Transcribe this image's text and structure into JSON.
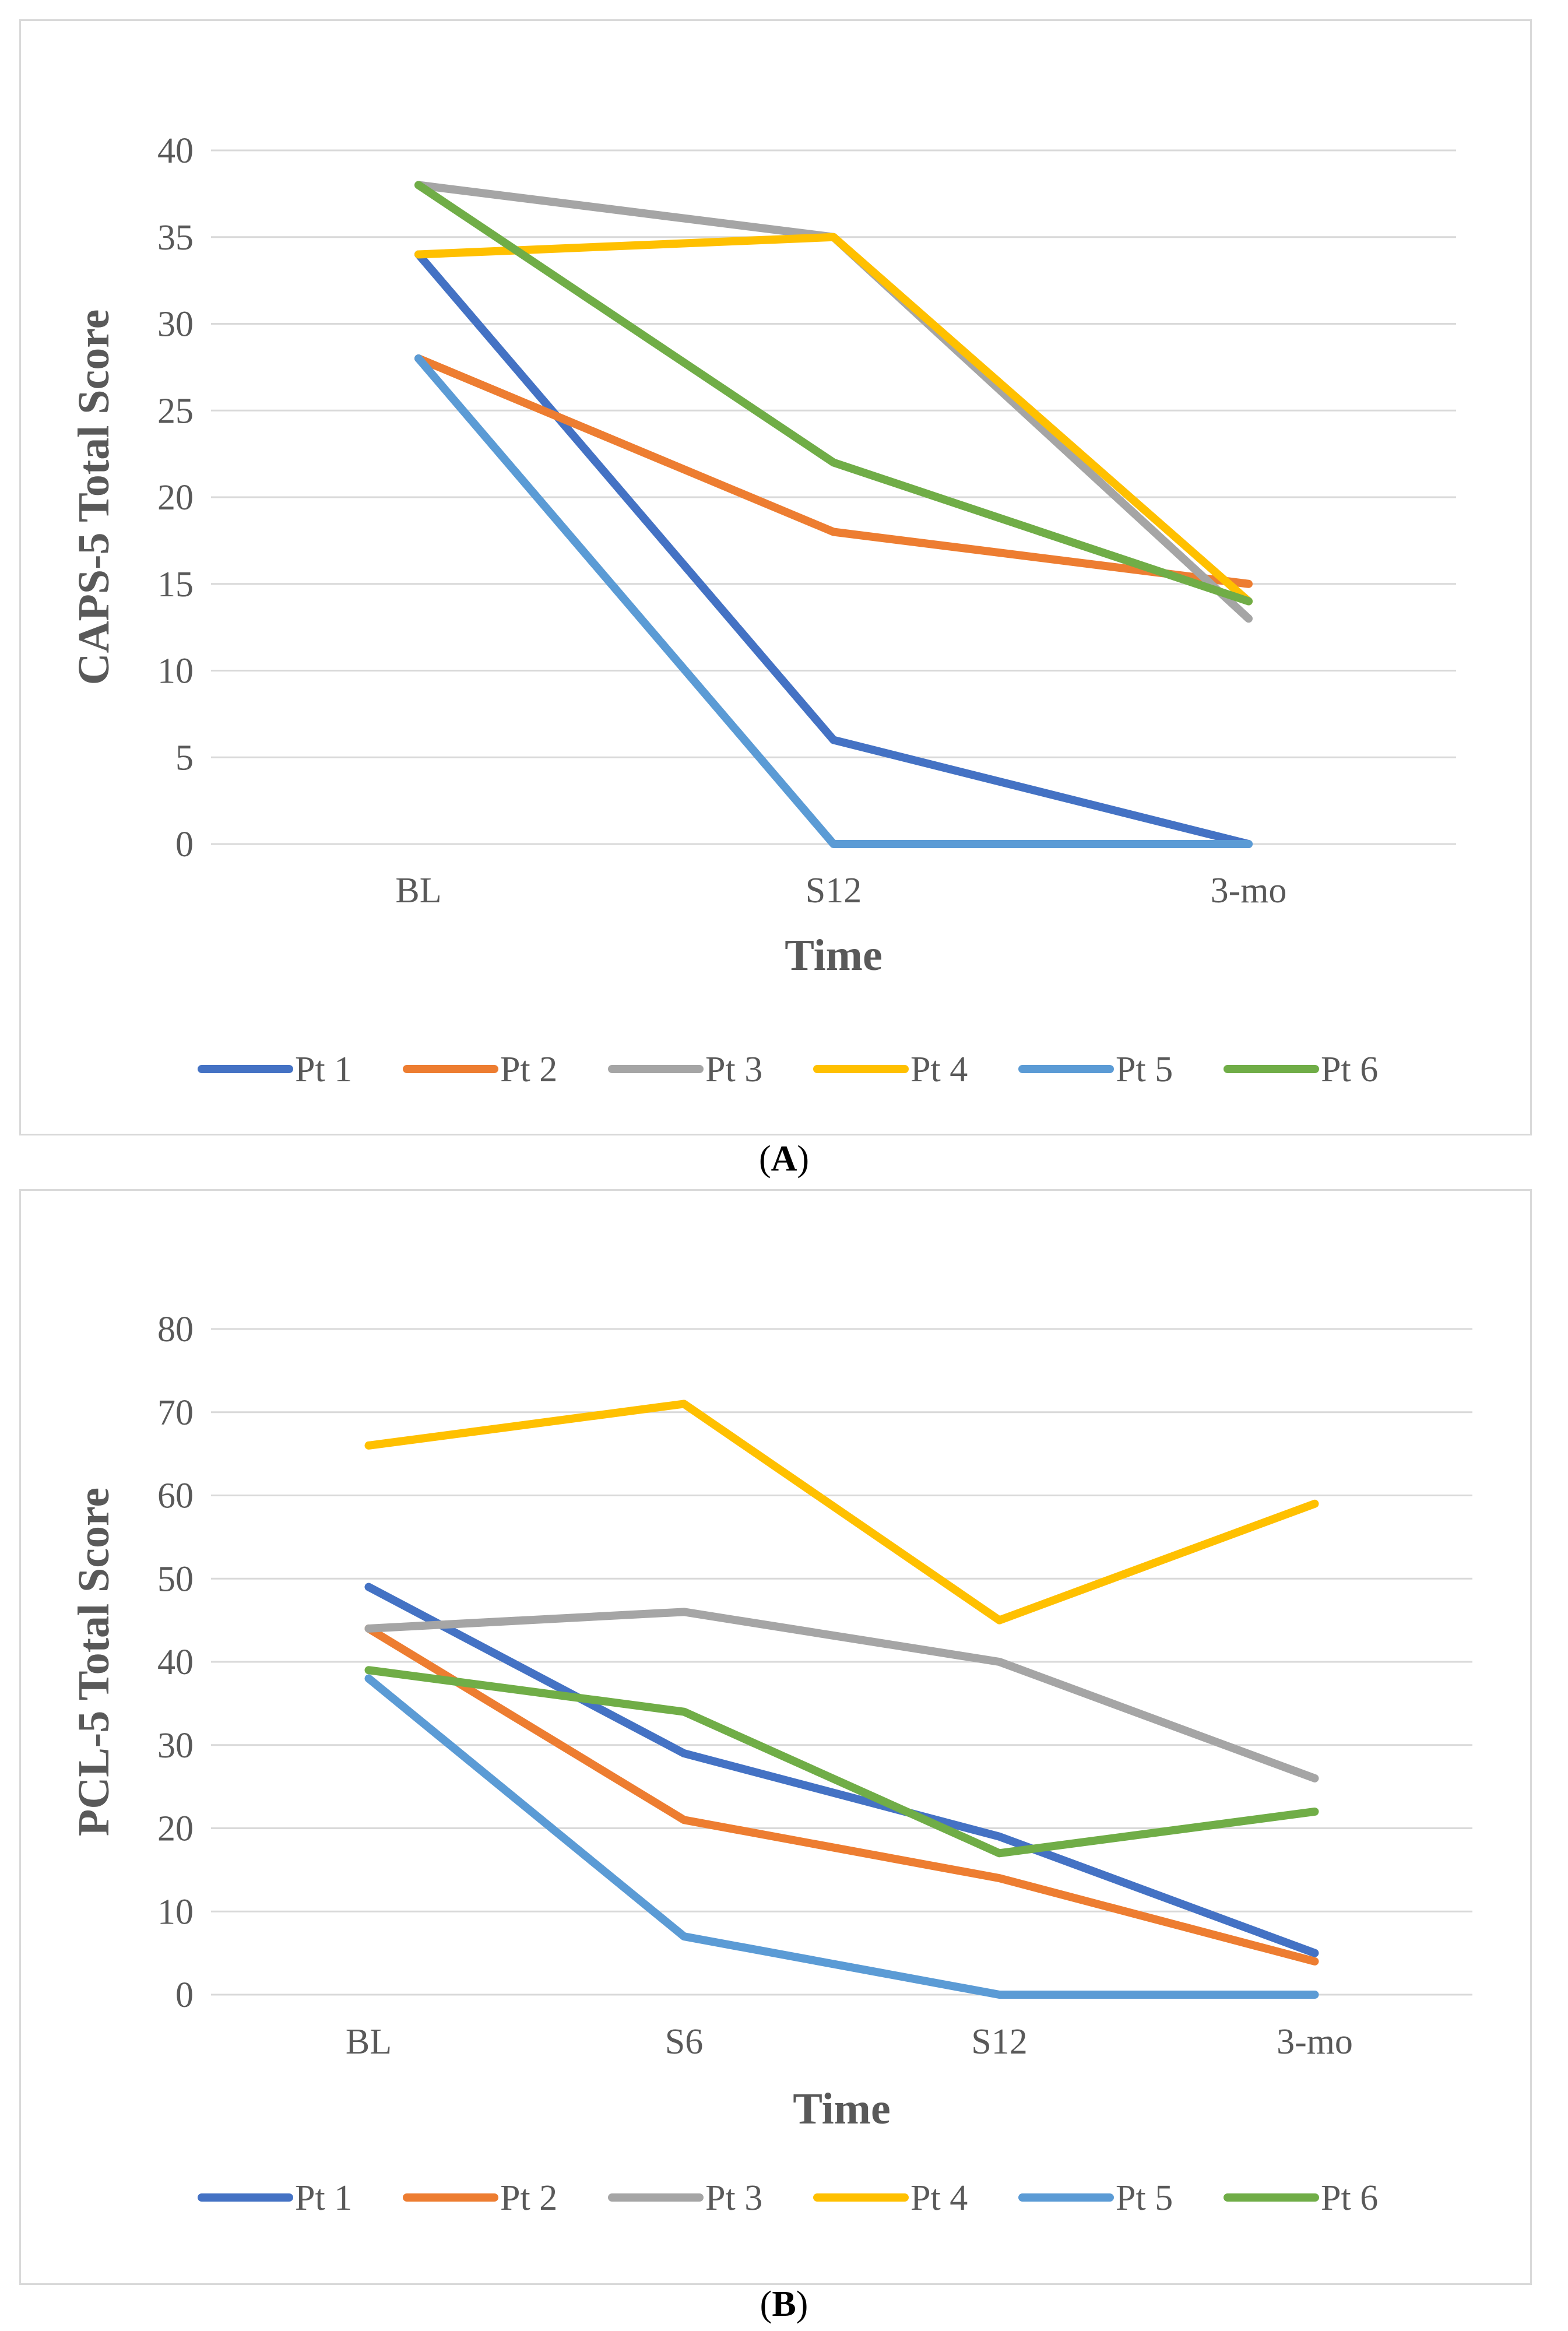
{
  "charts": [
    {
      "type": "line",
      "panel_label": "A",
      "ylabel": "CAPS-5 Total Score",
      "xlabel": "Time",
      "ylim": [
        0,
        40
      ],
      "yticks": [
        0,
        5,
        10,
        15,
        20,
        25,
        30,
        35,
        40
      ],
      "categories": [
        "BL",
        "S12",
        "3-mo"
      ],
      "legend_position": "bottom",
      "grid": true,
      "series": [
        {
          "name": "Pt 1",
          "color": "#4472C4",
          "values": [
            34,
            6,
            0
          ]
        },
        {
          "name": "Pt 2",
          "color": "#ED7D31",
          "values": [
            28,
            18,
            15
          ]
        },
        {
          "name": "Pt 3",
          "color": "#A5A5A5",
          "values": [
            38,
            35,
            13
          ]
        },
        {
          "name": "Pt 4",
          "color": "#FFC000",
          "values": [
            34,
            35,
            14
          ]
        },
        {
          "name": "Pt 5",
          "color": "#5B9BD5",
          "values": [
            28,
            0,
            0
          ]
        },
        {
          "name": "Pt 6",
          "color": "#70AD47",
          "values": [
            38,
            22,
            14
          ]
        }
      ]
    },
    {
      "type": "line",
      "panel_label": "B",
      "ylabel": "PCL-5 Total Score",
      "xlabel": "Time",
      "ylim": [
        0,
        80
      ],
      "yticks": [
        0,
        10,
        20,
        30,
        40,
        50,
        60,
        70,
        80
      ],
      "categories": [
        "BL",
        "S6",
        "S12",
        "3-mo"
      ],
      "legend_position": "bottom",
      "grid": true,
      "series": [
        {
          "name": "Pt 1",
          "color": "#4472C4",
          "values": [
            49,
            29,
            19,
            5
          ]
        },
        {
          "name": "Pt 2",
          "color": "#ED7D31",
          "values": [
            44,
            21,
            14,
            4
          ]
        },
        {
          "name": "Pt 3",
          "color": "#A5A5A5",
          "values": [
            44,
            46,
            40,
            26
          ]
        },
        {
          "name": "Pt 4",
          "color": "#FFC000",
          "values": [
            66,
            71,
            45,
            59
          ]
        },
        {
          "name": "Pt 5",
          "color": "#5B9BD5",
          "values": [
            38,
            7,
            0,
            0
          ]
        },
        {
          "name": "Pt 6",
          "color": "#70AD47",
          "values": [
            39,
            34,
            17,
            22
          ]
        }
      ]
    }
  ]
}
